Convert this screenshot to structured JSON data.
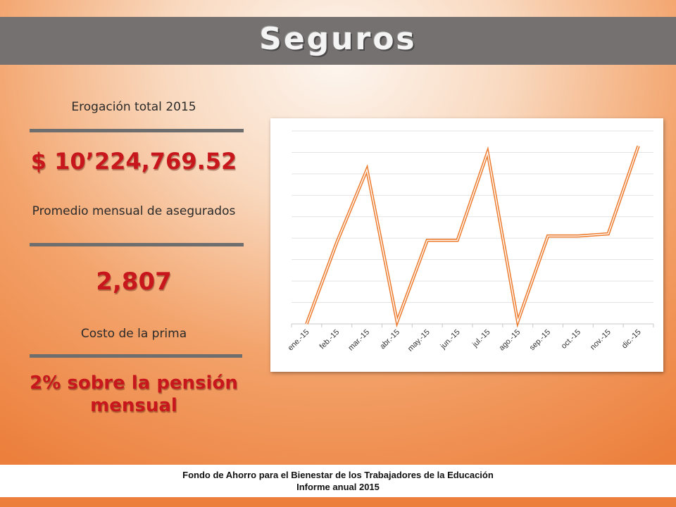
{
  "title": "Seguros",
  "stats": {
    "total_label": "Erogación total 2015",
    "total_value": "$ 10’224,769.52",
    "avg_label": "Promedio mensual de asegurados",
    "avg_value": "2,807",
    "cost_label": "Costo de la prima",
    "cost_value": "2% sobre la pensión mensual"
  },
  "chart_data": {
    "type": "line",
    "categories": [
      "ene.-15",
      "feb.-15",
      "mar.-15",
      "abr.-15",
      "may.-15",
      "jun.-15",
      "jul.-15",
      "ago.-15",
      "sep.-15",
      "oct.-15",
      "nov.-15",
      "dic.-15"
    ],
    "values": [
      0,
      38,
      72,
      1,
      39,
      39,
      80,
      1,
      41,
      41,
      42,
      83
    ],
    "ylim": [
      0,
      90
    ],
    "grid": true,
    "legend": "none",
    "line_color": "#ed7d31"
  },
  "footer": {
    "line1": "Fondo de Ahorro para el Bienestar de los Trabajadores de la Educación",
    "line2": "Informe anual 2015"
  }
}
